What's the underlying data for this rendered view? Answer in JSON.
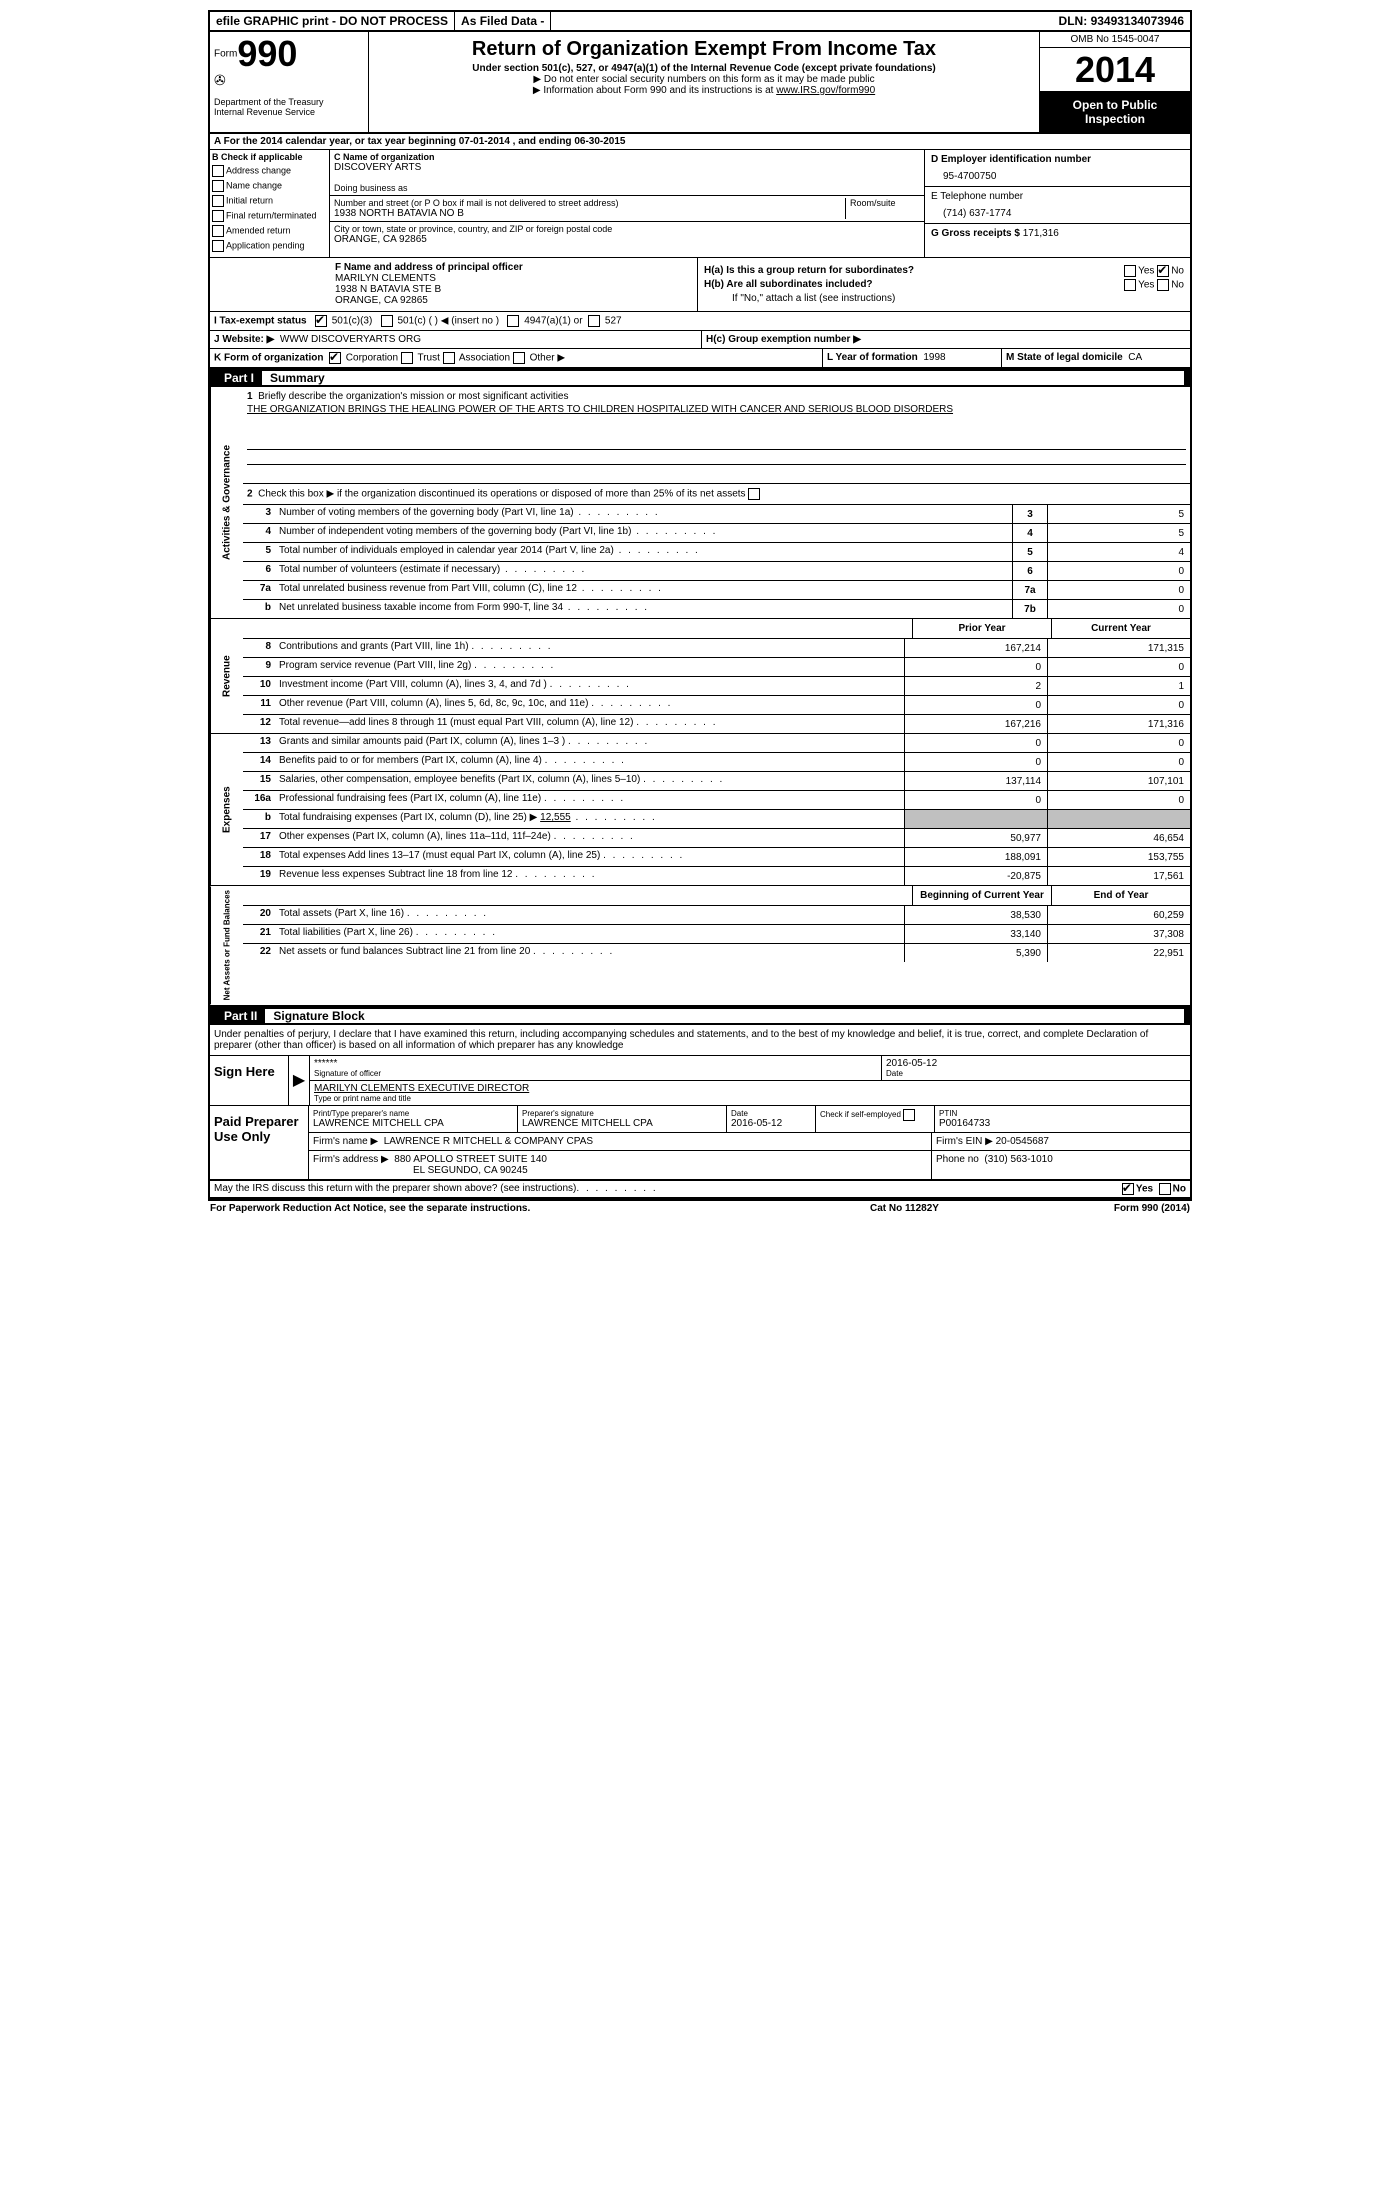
{
  "topbar": {
    "efile": "efile GRAPHIC print - DO NOT PROCESS",
    "asfiled": "As Filed Data -",
    "dln_label": "DLN:",
    "dln": "93493134073946"
  },
  "header": {
    "form_label": "Form",
    "form_num": "990",
    "dept1": "Department of the Treasury",
    "dept2": "Internal Revenue Service",
    "title": "Return of Organization Exempt From Income Tax",
    "subtitle": "Under section 501(c), 527, or 4947(a)(1) of the Internal Revenue Code (except private foundations)",
    "note1": "▶ Do not enter social security numbers on this form as it may be made public",
    "note2": "▶ Information about Form 990 and its instructions is at ",
    "note2_link": "www.IRS.gov/form990",
    "omb": "OMB No 1545-0047",
    "year": "2014",
    "open": "Open to Public Inspection"
  },
  "section_a": "A For the 2014 calendar year, or tax year beginning 07-01-2014     , and ending 06-30-2015",
  "col_b": {
    "header": "B Check if applicable",
    "items": [
      "Address change",
      "Name change",
      "Initial return",
      "Final return/terminated",
      "Amended return",
      "Application pending"
    ]
  },
  "col_c": {
    "name_label": "C Name of organization",
    "name": "DISCOVERY ARTS",
    "dba_label": "Doing business as",
    "dba": "",
    "street_label": "Number and street (or P O  box if mail is not delivered to street address)",
    "room_label": "Room/suite",
    "street": "1938 NORTH BATAVIA NO B",
    "city_label": "City or town, state or province, country, and ZIP or foreign postal code",
    "city": "ORANGE, CA  92865"
  },
  "col_d": {
    "ein_label": "D Employer identification number",
    "ein": "95-4700750",
    "phone_label": "E Telephone number",
    "phone": "(714) 637-1774",
    "gross_label": "G Gross receipts $",
    "gross": "171,316"
  },
  "row_f": {
    "label": "F  Name and address of principal officer",
    "name": "MARILYN CLEMENTS",
    "addr1": "1938 N BATAVIA STE B",
    "addr2": "ORANGE, CA  92865"
  },
  "row_h": {
    "ha": "H(a)  Is this a group return for subordinates?",
    "hb": "H(b)  Are all subordinates included?",
    "hb_note": "If \"No,\" attach a list  (see instructions)",
    "hc": "H(c)  Group exemption number ▶",
    "yes": "Yes",
    "no": "No"
  },
  "row_i": {
    "label": "I   Tax-exempt status",
    "opt1": "501(c)(3)",
    "opt2": "501(c) (    ) ◀ (insert no )",
    "opt3": "4947(a)(1) or",
    "opt4": "527"
  },
  "row_j": {
    "label": "J   Website: ▶",
    "value": "WWW DISCOVERYARTS ORG"
  },
  "row_k": {
    "label": "K Form of organization",
    "corp": "Corporation",
    "trust": "Trust",
    "assoc": "Association",
    "other": "Other ▶",
    "l_label": "L Year of formation",
    "l_val": "1998",
    "m_label": "M State of legal domicile",
    "m_val": "CA"
  },
  "part1": {
    "label": "Part I",
    "title": "Summary"
  },
  "mission": {
    "num": "1",
    "label": "Briefly describe the organization's mission or most significant activities",
    "text": "THE ORGANIZATION BRINGS THE HEALING POWER OF THE ARTS TO CHILDREN HOSPITALIZED WITH CANCER AND SERIOUS BLOOD DISORDERS"
  },
  "line2": {
    "num": "2",
    "text": "Check this box ▶    if the organization discontinued its operations or disposed of more than 25% of its net assets"
  },
  "activities_rows": [
    {
      "num": "3",
      "desc": "Number of voting members of the governing body (Part VI, line 1a)",
      "box": "3",
      "val": "5"
    },
    {
      "num": "4",
      "desc": "Number of independent voting members of the governing body (Part VI, line 1b)",
      "box": "4",
      "val": "5"
    },
    {
      "num": "5",
      "desc": "Total number of individuals employed in calendar year 2014 (Part V, line 2a)",
      "box": "5",
      "val": "4"
    },
    {
      "num": "6",
      "desc": "Total number of volunteers (estimate if necessary)",
      "box": "6",
      "val": "0"
    },
    {
      "num": "7a",
      "desc": "Total unrelated business revenue from Part VIII, column (C), line 12",
      "box": "7a",
      "val": "0"
    },
    {
      "num": "b",
      "desc": "Net unrelated business taxable income from Form 990-T, line 34",
      "box": "7b",
      "val": "0"
    }
  ],
  "year_headers": {
    "prior": "Prior Year",
    "current": "Current Year"
  },
  "revenue_rows": [
    {
      "num": "8",
      "desc": "Contributions and grants (Part VIII, line 1h)",
      "py": "167,214",
      "cy": "171,315"
    },
    {
      "num": "9",
      "desc": "Program service revenue (Part VIII, line 2g)",
      "py": "0",
      "cy": "0"
    },
    {
      "num": "10",
      "desc": "Investment income (Part VIII, column (A), lines 3, 4, and 7d )",
      "py": "2",
      "cy": "1"
    },
    {
      "num": "11",
      "desc": "Other revenue (Part VIII, column (A), lines 5, 6d, 8c, 9c, 10c, and 11e)",
      "py": "0",
      "cy": "0"
    },
    {
      "num": "12",
      "desc": "Total revenue—add lines 8 through 11 (must equal Part VIII, column (A), line 12)",
      "py": "167,216",
      "cy": "171,316"
    }
  ],
  "expense_rows": [
    {
      "num": "13",
      "desc": "Grants and similar amounts paid (Part IX, column (A), lines 1–3 )",
      "py": "0",
      "cy": "0"
    },
    {
      "num": "14",
      "desc": "Benefits paid to or for members (Part IX, column (A), line 4)",
      "py": "0",
      "cy": "0"
    },
    {
      "num": "15",
      "desc": "Salaries, other compensation, employee benefits (Part IX, column (A), lines 5–10)",
      "py": "137,114",
      "cy": "107,101"
    },
    {
      "num": "16a",
      "desc": "Professional fundraising fees (Part IX, column (A), line 11e)",
      "py": "0",
      "cy": "0"
    },
    {
      "num": "b",
      "desc": "Total fundraising expenses (Part IX, column (D), line 25) ▶",
      "inline": "12,555",
      "py": "",
      "cy": "",
      "shaded": true
    },
    {
      "num": "17",
      "desc": "Other expenses (Part IX, column (A), lines 11a–11d, 11f–24e)",
      "py": "50,977",
      "cy": "46,654"
    },
    {
      "num": "18",
      "desc": "Total expenses  Add lines 13–17 (must equal Part IX, column (A), line 25)",
      "py": "188,091",
      "cy": "153,755"
    },
    {
      "num": "19",
      "desc": "Revenue less expenses  Subtract line 18 from line 12",
      "py": "-20,875",
      "cy": "17,561"
    }
  ],
  "balance_headers": {
    "begin": "Beginning of Current Year",
    "end": "End of Year"
  },
  "balance_rows": [
    {
      "num": "20",
      "desc": "Total assets (Part X, line 16)",
      "py": "38,530",
      "cy": "60,259"
    },
    {
      "num": "21",
      "desc": "Total liabilities (Part X, line 26)",
      "py": "33,140",
      "cy": "37,308"
    },
    {
      "num": "22",
      "desc": "Net assets or fund balances  Subtract line 21 from line 20",
      "py": "5,390",
      "cy": "22,951"
    }
  ],
  "side_labels": {
    "activities": "Activities & Governance",
    "revenue": "Revenue",
    "expenses": "Expenses",
    "balances": "Net Assets or Fund Balances"
  },
  "part2": {
    "label": "Part II",
    "title": "Signature Block"
  },
  "sig_text": "Under penalties of perjury, I declare that I have examined this return, including accompanying schedules and statements, and to the best of my knowledge and belief, it is true, correct, and complete  Declaration of preparer (other than officer) is based on all information of which preparer has any knowledge",
  "sign": {
    "label": "Sign Here",
    "stars": "******",
    "sig_label": "Signature of officer",
    "date": "2016-05-12",
    "date_label": "Date",
    "name": "MARILYN CLEMENTS EXECUTIVE DIRECTOR",
    "name_label": "Type or print name and title"
  },
  "prep": {
    "label": "Paid Preparer Use Only",
    "name_label": "Print/Type preparer's name",
    "name": "LAWRENCE MITCHELL CPA",
    "sig_label": "Preparer's signature",
    "sig": "LAWRENCE MITCHELL CPA",
    "date_label": "Date",
    "date": "2016-05-12",
    "check_label": "Check      if self-employed",
    "ptin_label": "PTIN",
    "ptin": "P00164733",
    "firm_name_label": "Firm's name     ▶",
    "firm_name": "LAWRENCE R MITCHELL & COMPANY CPAS",
    "firm_ein_label": "Firm's EIN ▶",
    "firm_ein": "20-0545687",
    "firm_addr_label": "Firm's address ▶",
    "firm_addr": "880 APOLLO STREET SUITE 140",
    "firm_city": "EL SEGUNDO, CA  90245",
    "phone_label": "Phone no",
    "phone": "(310) 563-1010"
  },
  "discuss": {
    "text": "May the IRS discuss this return with the preparer shown above? (see instructions)",
    "yes": "Yes",
    "no": "No"
  },
  "footer": {
    "left": "For Paperwork Reduction Act Notice, see the separate instructions.",
    "mid": "Cat No  11282Y",
    "right": "Form 990 (2014)"
  }
}
